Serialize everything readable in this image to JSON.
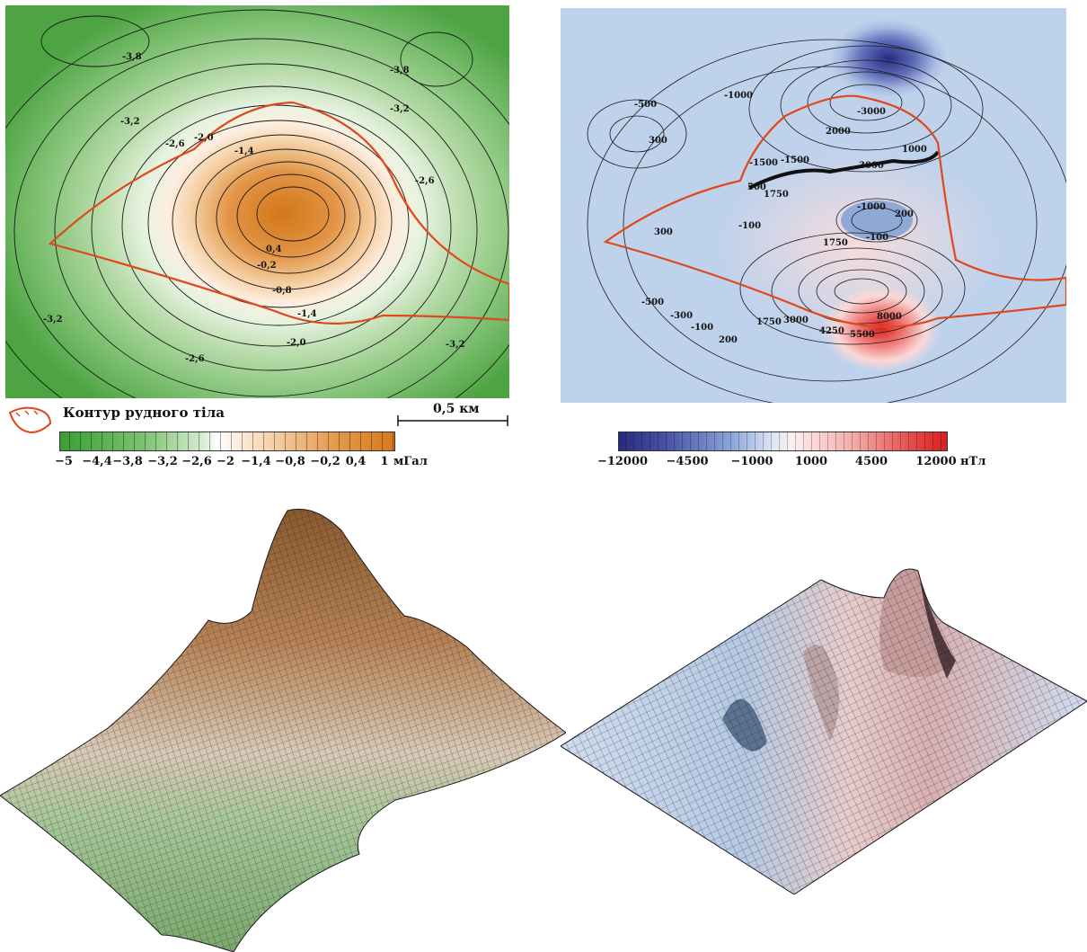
{
  "gravity_map": {
    "contour_labels": [
      "-3,8",
      "-3,8",
      "-3,2",
      "-3,2",
      "-2,6",
      "-2,0",
      "-1,4",
      "-2,6",
      "0,4",
      "-0,2",
      "-0,8",
      "-1,4",
      "-2,0",
      "-3,2",
      "-2,6",
      "-3,2"
    ],
    "legend_label": "Контур рудного тіла",
    "scale_label": "0,5 км",
    "colorbar": {
      "ticks": [
        "−5",
        "−4,4",
        "−3,8",
        "−3,2",
        "−2,6",
        "−2",
        "−1,4",
        "−0,8",
        "−0,2",
        "0,4",
        "1"
      ],
      "unit": "мГал",
      "min_color": "#3a9e35",
      "mid_color": "#ffffff",
      "max_color": "#d8781c"
    },
    "ore_contour_color": "#e0481c"
  },
  "magnetic_map": {
    "contour_labels": [
      "-1000",
      "-500",
      "300",
      "-1500",
      "-3000",
      "2000",
      "1000",
      "3000",
      "500",
      "-1500",
      "1750",
      "-100",
      "300",
      "-1000",
      "200",
      "-100",
      "1750",
      "-500",
      "-300",
      "-100",
      "200",
      "1750",
      "3000",
      "4250",
      "5500",
      "8000"
    ],
    "colorbar": {
      "ticks": [
        "−12000",
        "−4500",
        "−1000",
        "1000",
        "4500",
        "12000"
      ],
      "unit": "нТл",
      "min_color": "#262b80",
      "mid_color": "#ffffff",
      "max_color": "#d91e1e"
    }
  }
}
